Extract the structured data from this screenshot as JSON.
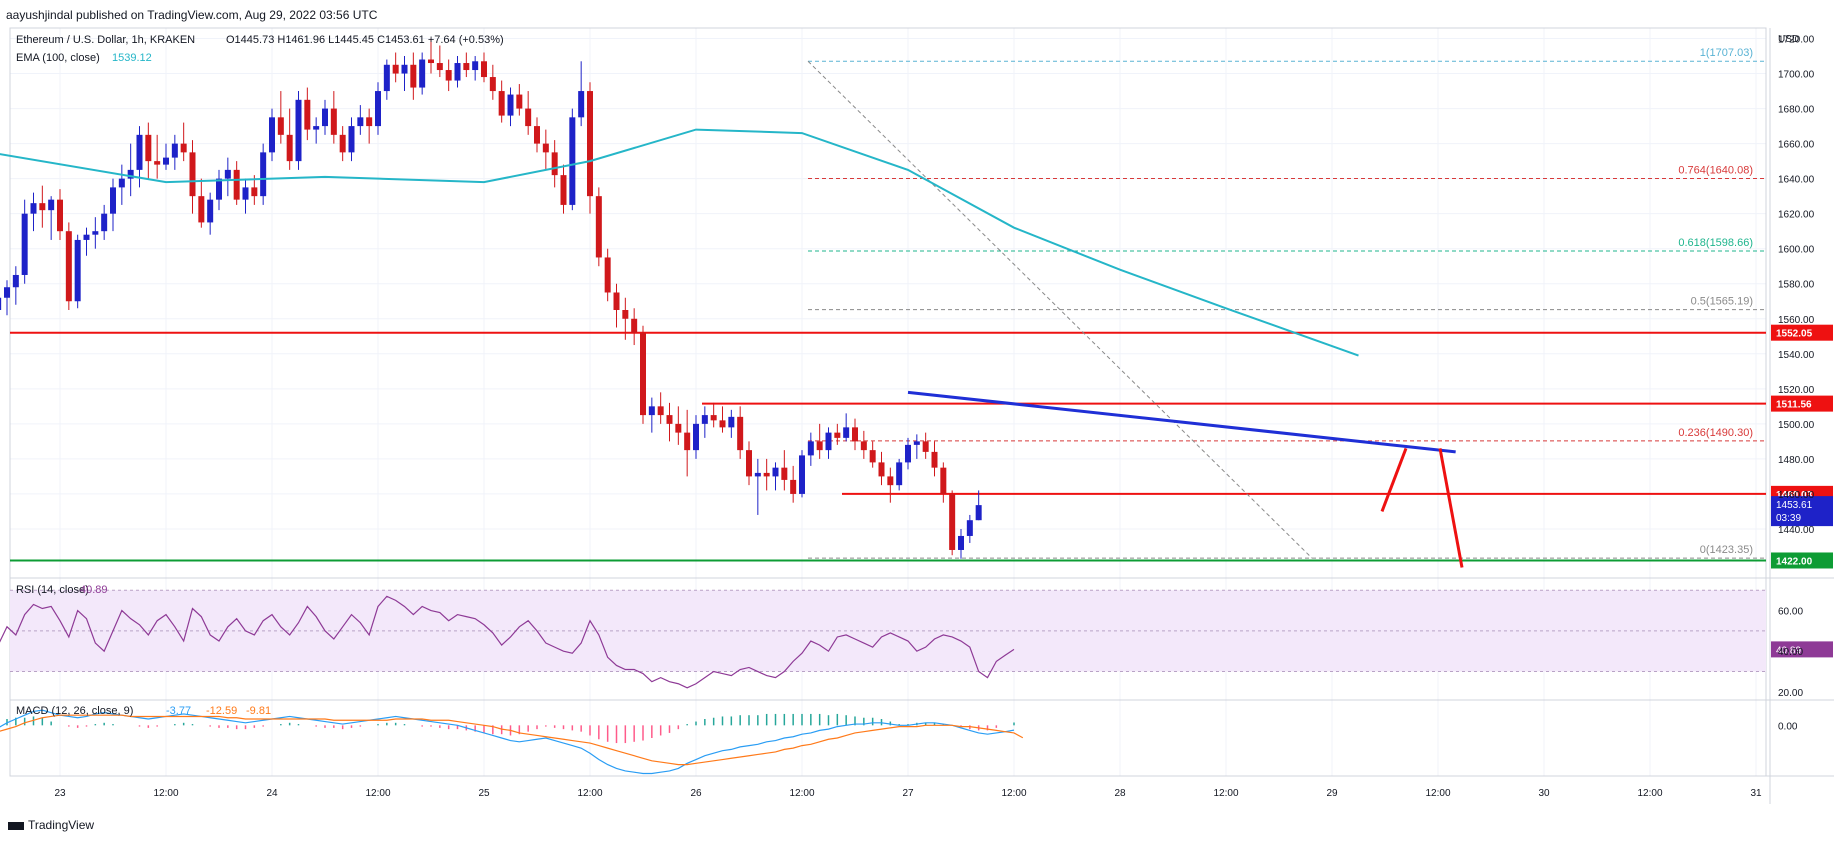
{
  "header": {
    "published": "aayushjindal published on TradingView.com, Aug 29, 2022 03:56 UTC",
    "symbol": "Ethereum / U.S. Dollar, 1h, KRAKEN",
    "ohlc": "O1445.73  H1461.96  L1445.45  C1453.61  +7.64 (+0.53%)",
    "ema_label": "EMA (100, close)",
    "ema_value": "1539.12"
  },
  "footer": {
    "brand": "TradingView"
  },
  "colors": {
    "up": "#1e22c8",
    "down": "#d0181b",
    "ema": "#25b6c8",
    "level_red": "#ee1111",
    "level_green": "#0d9c34",
    "trendline": "#1f2fd6",
    "rsi": "#8e3a96",
    "macd": "#2a9df4",
    "signal": "#ff7a1a"
  },
  "chart_data": [
    {
      "type": "candlestick",
      "title": "Ethereum / U.S. Dollar, 1h, KRAKEN",
      "y_axis_label": "USD",
      "ylim": [
        1412,
        1726
      ],
      "y_ticks": [
        1440,
        1460,
        1480,
        1500,
        1520,
        1540,
        1560,
        1580,
        1600,
        1620,
        1640,
        1660,
        1680,
        1700,
        1720
      ],
      "x_ticks": [
        "23",
        "12:00",
        "24",
        "12:00",
        "25",
        "12:00",
        "26",
        "12:00",
        "27",
        "12:00",
        "28",
        "12:00",
        "29",
        "12:00",
        "30",
        "12:00",
        "31"
      ],
      "series": [
        {
          "name": "EMA (100, close)",
          "last_value": 1539.12,
          "x": [
            "Aug 22 16:00",
            "Aug 23 12:00",
            "Aug 24 06:00",
            "Aug 25 00:00",
            "Aug 25 12:00",
            "Aug 26 00:00",
            "Aug 26 12:00",
            "Aug 27 00:00",
            "Aug 27 12:00",
            "Aug 28 00:00",
            "Aug 28 12:00",
            "Aug 29 03:00"
          ],
          "values": [
            1655,
            1638,
            1641,
            1638,
            1650,
            1668,
            1666,
            1645,
            1612,
            1588,
            1566,
            1539
          ]
        }
      ],
      "fib_levels": [
        {
          "label": "1(1707.03)",
          "value": 1707.03
        },
        {
          "label": "0.764(1640.08)",
          "value": 1640.08
        },
        {
          "label": "0.618(1598.66)",
          "value": 1598.66
        },
        {
          "label": "0.5(1565.19)",
          "value": 1565.19
        },
        {
          "label": "0.236(1490.30)",
          "value": 1490.3
        },
        {
          "label": "0(1423.35)",
          "value": 1423.35
        }
      ],
      "horizontal_levels": [
        {
          "value": 1552.05,
          "label": "1552.05",
          "color": "red"
        },
        {
          "value": 1511.56,
          "label": "1511.56",
          "color": "red"
        },
        {
          "value": 1460.03,
          "label": "1460.03",
          "color": "red"
        },
        {
          "value": 1422.0,
          "label": "1422.00",
          "color": "green"
        }
      ],
      "trendline": {
        "from": {
          "x": "Aug 27 00:00",
          "y": 1518
        },
        "to": {
          "x": "Aug 29 14:00",
          "y": 1484
        }
      },
      "current_price": {
        "value": 1453.61,
        "label": "1453.61",
        "countdown": "03:39"
      },
      "ohlc_last": {
        "open": 1445.73,
        "high": 1461.96,
        "low": 1445.45,
        "close": 1453.61,
        "change": 7.64,
        "change_pct": 0.53
      },
      "candles": [
        [
          1560,
          1570,
          1555,
          1565
        ],
        [
          1565,
          1578,
          1558,
          1572
        ],
        [
          1572,
          1582,
          1562,
          1578
        ],
        [
          1578,
          1590,
          1568,
          1585
        ],
        [
          1585,
          1628,
          1580,
          1620
        ],
        [
          1620,
          1632,
          1610,
          1626
        ],
        [
          1626,
          1636,
          1612,
          1622
        ],
        [
          1622,
          1630,
          1605,
          1628
        ],
        [
          1628,
          1634,
          1605,
          1610
        ],
        [
          1610,
          1615,
          1565,
          1570
        ],
        [
          1570,
          1608,
          1566,
          1605
        ],
        [
          1605,
          1612,
          1596,
          1608
        ],
        [
          1608,
          1618,
          1600,
          1610
        ],
        [
          1610,
          1625,
          1605,
          1620
        ],
        [
          1620,
          1640,
          1610,
          1635
        ],
        [
          1635,
          1648,
          1625,
          1640
        ],
        [
          1640,
          1660,
          1630,
          1645
        ],
        [
          1645,
          1670,
          1635,
          1665
        ],
        [
          1665,
          1672,
          1640,
          1650
        ],
        [
          1650,
          1665,
          1640,
          1648
        ],
        [
          1648,
          1660,
          1645,
          1652
        ],
        [
          1652,
          1665,
          1645,
          1660
        ],
        [
          1660,
          1672,
          1650,
          1655
        ],
        [
          1655,
          1662,
          1620,
          1630
        ],
        [
          1630,
          1640,
          1612,
          1615
        ],
        [
          1615,
          1632,
          1608,
          1628
        ],
        [
          1628,
          1645,
          1622,
          1640
        ],
        [
          1640,
          1652,
          1630,
          1645
        ],
        [
          1645,
          1650,
          1625,
          1628
        ],
        [
          1628,
          1640,
          1620,
          1635
        ],
        [
          1635,
          1642,
          1625,
          1630
        ],
        [
          1630,
          1660,
          1625,
          1655
        ],
        [
          1655,
          1680,
          1650,
          1675
        ],
        [
          1675,
          1690,
          1660,
          1665
        ],
        [
          1665,
          1680,
          1645,
          1650
        ],
        [
          1650,
          1690,
          1645,
          1685
        ],
        [
          1685,
          1692,
          1662,
          1668
        ],
        [
          1668,
          1675,
          1660,
          1670
        ],
        [
          1670,
          1685,
          1665,
          1680
        ],
        [
          1680,
          1690,
          1660,
          1665
        ],
        [
          1665,
          1670,
          1650,
          1655
        ],
        [
          1655,
          1675,
          1650,
          1670
        ],
        [
          1670,
          1682,
          1665,
          1675
        ],
        [
          1675,
          1680,
          1660,
          1670
        ],
        [
          1670,
          1695,
          1665,
          1690
        ],
        [
          1690,
          1708,
          1685,
          1705
        ],
        [
          1705,
          1712,
          1695,
          1700
        ],
        [
          1700,
          1710,
          1690,
          1705
        ],
        [
          1705,
          1712,
          1685,
          1692
        ],
        [
          1692,
          1712,
          1688,
          1708
        ],
        [
          1708,
          1720,
          1700,
          1706
        ],
        [
          1706,
          1716,
          1698,
          1702
        ],
        [
          1702,
          1708,
          1690,
          1696
        ],
        [
          1696,
          1710,
          1692,
          1706
        ],
        [
          1706,
          1712,
          1698,
          1702
        ],
        [
          1702,
          1710,
          1696,
          1707
        ],
        [
          1707,
          1712,
          1695,
          1698
        ],
        [
          1698,
          1705,
          1685,
          1690
        ],
        [
          1690,
          1696,
          1672,
          1676
        ],
        [
          1676,
          1692,
          1670,
          1688
        ],
        [
          1688,
          1694,
          1676,
          1680
        ],
        [
          1680,
          1690,
          1665,
          1670
        ],
        [
          1670,
          1675,
          1655,
          1660
        ],
        [
          1660,
          1668,
          1645,
          1655
        ],
        [
          1655,
          1662,
          1635,
          1642
        ],
        [
          1642,
          1648,
          1620,
          1625
        ],
        [
          1625,
          1680,
          1622,
          1675
        ],
        [
          1675,
          1707,
          1670,
          1690
        ],
        [
          1690,
          1695,
          1620,
          1630
        ],
        [
          1630,
          1635,
          1590,
          1595
        ],
        [
          1595,
          1600,
          1570,
          1575
        ],
        [
          1575,
          1580,
          1555,
          1565
        ],
        [
          1565,
          1572,
          1548,
          1560
        ],
        [
          1560,
          1566,
          1545,
          1552
        ],
        [
          1552,
          1556,
          1500,
          1505
        ],
        [
          1505,
          1515,
          1495,
          1510
        ],
        [
          1510,
          1518,
          1500,
          1505
        ],
        [
          1505,
          1512,
          1490,
          1500
        ],
        [
          1500,
          1510,
          1488,
          1495
        ],
        [
          1495,
          1508,
          1470,
          1485
        ],
        [
          1485,
          1505,
          1480,
          1500
        ],
        [
          1500,
          1510,
          1492,
          1505
        ],
        [
          1505,
          1512,
          1498,
          1502
        ],
        [
          1502,
          1510,
          1495,
          1498
        ],
        [
          1498,
          1508,
          1492,
          1504
        ],
        [
          1504,
          1510,
          1480,
          1485
        ],
        [
          1485,
          1490,
          1465,
          1470
        ],
        [
          1470,
          1480,
          1448,
          1472
        ],
        [
          1472,
          1480,
          1462,
          1470
        ],
        [
          1470,
          1478,
          1462,
          1475
        ],
        [
          1475,
          1485,
          1462,
          1468
        ],
        [
          1468,
          1476,
          1455,
          1460
        ],
        [
          1460,
          1485,
          1458,
          1482
        ],
        [
          1482,
          1495,
          1476,
          1490
        ],
        [
          1490,
          1500,
          1480,
          1485
        ],
        [
          1485,
          1498,
          1480,
          1495
        ],
        [
          1495,
          1500,
          1488,
          1492
        ],
        [
          1492,
          1506,
          1490,
          1498
        ],
        [
          1498,
          1503,
          1485,
          1490
        ],
        [
          1490,
          1496,
          1480,
          1485
        ],
        [
          1485,
          1490,
          1475,
          1478
        ],
        [
          1478,
          1484,
          1465,
          1470
        ],
        [
          1470,
          1475,
          1455,
          1465
        ],
        [
          1465,
          1480,
          1462,
          1478
        ],
        [
          1478,
          1492,
          1474,
          1488
        ],
        [
          1488,
          1494,
          1480,
          1490
        ],
        [
          1490,
          1495,
          1480,
          1484
        ],
        [
          1484,
          1490,
          1470,
          1475
        ],
        [
          1475,
          1478,
          1455,
          1460
        ],
        [
          1460,
          1462,
          1425,
          1428
        ],
        [
          1428,
          1440,
          1423,
          1436
        ],
        [
          1436,
          1448,
          1432,
          1445
        ],
        [
          1445,
          1462,
          1445,
          1453.61
        ]
      ]
    },
    {
      "type": "line",
      "title": "RSI (14, close)",
      "last_value": 40.89,
      "ylim": [
        16,
        76
      ],
      "y_ticks": [
        20,
        40,
        60
      ],
      "band": [
        30,
        70
      ],
      "values": [
        40,
        43,
        52,
        48,
        58,
        63,
        61,
        62,
        55,
        47,
        60,
        56,
        44,
        40,
        50,
        60,
        56,
        53,
        48,
        55,
        58,
        52,
        45,
        61,
        57,
        48,
        45,
        52,
        56,
        50,
        48,
        55,
        58,
        52,
        48,
        54,
        62,
        57,
        50,
        46,
        52,
        58,
        54,
        48,
        62,
        67,
        65,
        62,
        58,
        62,
        60,
        59,
        55,
        58,
        57,
        56,
        53,
        49,
        43,
        47,
        52,
        55,
        50,
        44,
        42,
        40,
        39,
        44,
        55,
        48,
        37,
        33,
        31,
        31,
        29,
        25,
        27,
        25,
        24,
        22,
        24,
        27,
        30,
        29,
        28,
        31,
        32,
        30,
        28,
        27,
        30,
        35,
        39,
        45,
        43,
        40,
        47,
        48,
        46,
        44,
        42,
        47,
        49,
        47,
        45,
        40,
        42,
        46,
        48,
        47,
        45,
        42,
        30,
        27,
        35,
        38,
        40.89
      ]
    },
    {
      "type": "line",
      "title": "MACD (12, 26, close, 9)",
      "values_display": [
        "-3.77",
        "-12.59",
        "-9.81"
      ],
      "ylim": [
        -40,
        20
      ],
      "y_ticks": [
        0
      ],
      "series": [
        {
          "name": "MACD",
          "values": [
            -4,
            -2,
            2,
            5,
            8,
            11,
            12,
            10,
            8,
            7,
            6,
            7,
            9,
            10,
            9,
            8,
            7,
            6,
            5,
            6,
            7,
            8,
            9,
            8,
            7,
            6,
            5,
            4,
            3,
            2,
            3,
            4,
            5,
            6,
            7,
            6,
            5,
            4,
            3,
            2,
            1,
            2,
            3,
            4,
            5,
            6,
            7,
            6,
            5,
            4,
            3,
            2,
            1,
            0,
            -2,
            -4,
            -6,
            -8,
            -10,
            -12,
            -13,
            -12,
            -11,
            -10,
            -12,
            -14,
            -16,
            -18,
            -22,
            -27,
            -31,
            -34,
            -36,
            -37,
            -38,
            -38,
            -37,
            -36,
            -34,
            -30,
            -27,
            -24,
            -22,
            -20,
            -19,
            -17,
            -16,
            -15,
            -13,
            -12,
            -10,
            -9,
            -7,
            -6,
            -4,
            -3,
            -1,
            0,
            1,
            1,
            2,
            2,
            1,
            0,
            0,
            1,
            2,
            2,
            1,
            0,
            -2,
            -4,
            -6,
            -7,
            -6,
            -5,
            -3.77
          ]
        },
        {
          "name": "Signal",
          "values": [
            -6,
            -5,
            -3,
            -1,
            2,
            4,
            6,
            7,
            8,
            8,
            8,
            8,
            8,
            8,
            8,
            8,
            7,
            7,
            7,
            7,
            7,
            7,
            7,
            7,
            7,
            7,
            7,
            6,
            6,
            5,
            5,
            5,
            5,
            5,
            5,
            5,
            5,
            5,
            5,
            4,
            4,
            4,
            4,
            4,
            4,
            4,
            5,
            5,
            5,
            5,
            4,
            4,
            4,
            3,
            2,
            1,
            0,
            -1,
            -3,
            -4,
            -6,
            -7,
            -8,
            -9,
            -10,
            -11,
            -12,
            -13,
            -14,
            -16,
            -18,
            -20,
            -22,
            -24,
            -26,
            -28,
            -29,
            -30,
            -31,
            -31,
            -30,
            -29,
            -28,
            -27,
            -26,
            -25,
            -24,
            -23,
            -22,
            -21,
            -19,
            -18,
            -16,
            -15,
            -13,
            -11,
            -10,
            -8,
            -6,
            -5,
            -4,
            -3,
            -2,
            -1,
            -1,
            -1,
            0,
            0,
            0,
            0,
            -1,
            -1,
            -2,
            -3,
            -4,
            -5,
            -6,
            -9.81
          ]
        }
      ]
    }
  ]
}
